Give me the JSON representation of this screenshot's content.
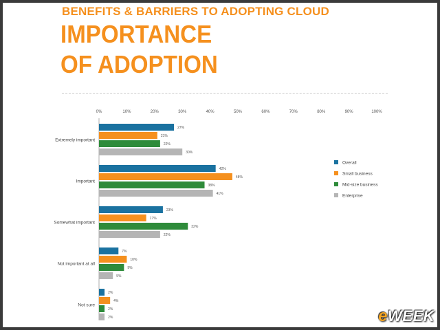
{
  "header": {
    "kicker": "BENEFITS & BARRIERS TO ADOPTING CLOUD",
    "title_line1": "IMPORTANCE",
    "title_line2": "OF ADOPTION"
  },
  "logo": {
    "prefix": "e",
    "rest": "WEEK"
  },
  "colors": {
    "overall": "#1a72a0",
    "small_business": "#f5901e",
    "midsize_business": "#2e8b3a",
    "enterprise": "#b5b5b5"
  },
  "chart_data": {
    "type": "bar",
    "orientation": "horizontal",
    "title": "",
    "xlabel": "",
    "ylabel": "",
    "xlim": [
      0,
      100
    ],
    "x_ticks": [
      "0%",
      "10%",
      "20%",
      "30%",
      "40%",
      "50%",
      "60%",
      "70%",
      "80%",
      "90%",
      "100%"
    ],
    "categories": [
      "Extremely important",
      "Important",
      "Somewhat important",
      "Not important at all",
      "Not sure"
    ],
    "series": [
      {
        "name": "Overall",
        "values": [
          27,
          42,
          23,
          7,
          2
        ],
        "labels": [
          "27%",
          "42%",
          "23%",
          "7%",
          "2%"
        ]
      },
      {
        "name": "Small business",
        "values": [
          21,
          48,
          17,
          10,
          4
        ],
        "labels": [
          "21%",
          "48%",
          "17%",
          "10%",
          "4%"
        ]
      },
      {
        "name": "Mid-size business",
        "values": [
          22,
          38,
          32,
          9,
          2
        ],
        "labels": [
          "22%",
          "38%",
          "32%",
          "9%",
          "2%"
        ]
      },
      {
        "name": "Enterprise",
        "values": [
          30,
          41,
          22,
          5,
          2
        ],
        "labels": [
          "30%",
          "41%",
          "22%",
          "5%",
          "2%"
        ]
      }
    ],
    "legend_position": "right",
    "grid": false
  }
}
